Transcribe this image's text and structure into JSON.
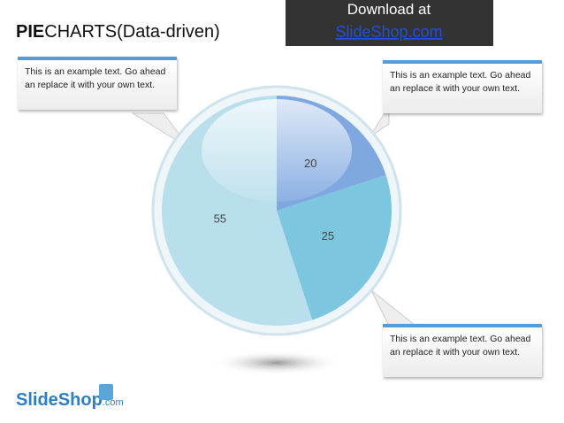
{
  "header": {
    "title_bold": "PIE",
    "title_rest": "CHARTS(Data-driven)",
    "banner_line1": "Download at",
    "banner_line2": "SlideShop.com"
  },
  "callouts": [
    "This is an example text. Go ahead an replace it with your own text.",
    "This is an example text. Go ahead an replace it with your own text.",
    "This is an example text. Go ahead an replace it with your own text."
  ],
  "logo": {
    "name": "SlideShop",
    "suffix": ".com"
  },
  "chart_data": {
    "type": "pie",
    "values": [
      20,
      25,
      55
    ],
    "colors": [
      "#7fa8e0",
      "#7cc6df",
      "#b9dfec"
    ]
  }
}
